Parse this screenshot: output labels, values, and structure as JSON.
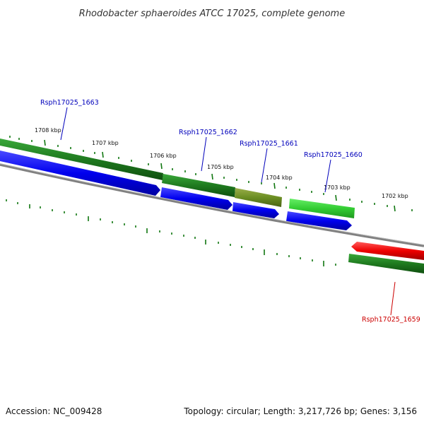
{
  "title": "Rhodobacter sphaeroides ATCC 17025, complete genome",
  "footer": {
    "accession": "Accession: NC_009428",
    "topology": "Topology: circular; Length: 3,217,726 bp; Genes: 3,156"
  },
  "colors": {
    "backbone": "#808080",
    "forward_cds": "#1f7a1f",
    "reverse_cds": "#0000ee",
    "olive_cds": "#6b8e23",
    "light_cds": "#33cc33",
    "rna": "#ee0000",
    "tick": "#117711",
    "label_blue": "#0000bb",
    "label_red": "#cc0000"
  },
  "scale_labels": [
    "1708 kbp",
    "1707 kbp",
    "1706 kbp",
    "1705 kbp",
    "1704 kbp",
    "1703 kbp",
    "1702 kbp"
  ],
  "gene_labels": [
    {
      "id": "Rsph17025_1663",
      "strand": "reverse"
    },
    {
      "id": "Rsph17025_1662",
      "strand": "forward"
    },
    {
      "id": "Rsph17025_1661",
      "strand": "forward"
    },
    {
      "id": "Rsph17025_1660",
      "strand": "forward"
    },
    {
      "id": "Rsph17025_1659",
      "strand": "reverse"
    }
  ]
}
